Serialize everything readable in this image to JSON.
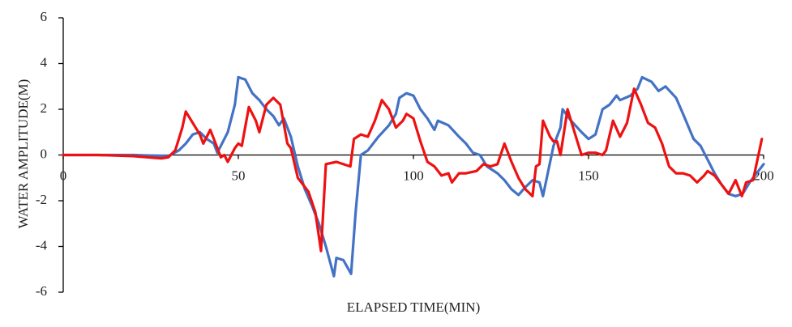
{
  "chart_data": {
    "type": "line",
    "x_label": "ELAPSED TIME(MIN)",
    "y_label": "WATER AMPLITUDE(M)",
    "xlim": [
      0,
      200
    ],
    "xticks": [
      0,
      50,
      100,
      150,
      200
    ],
    "ylim": [
      -6,
      6
    ],
    "yticks": [
      -6,
      -4,
      -2,
      0,
      2,
      4,
      6
    ],
    "series": [
      {
        "color": "#4472c4",
        "x": [
          0,
          10,
          20,
          30,
          33,
          35,
          37,
          39,
          41,
          43,
          44,
          47,
          49,
          50,
          52,
          54,
          56,
          58,
          60,
          61.6,
          63,
          65,
          67,
          69,
          71,
          73,
          75,
          77.3,
          78,
          80,
          82.2,
          83.5,
          85,
          87,
          90,
          93,
          95,
          96,
          98,
          100,
          102,
          104,
          106,
          107,
          110,
          113,
          115,
          117,
          119,
          121,
          124,
          126,
          128,
          130,
          132,
          134,
          136,
          137,
          140,
          142,
          142.6,
          145,
          148,
          150,
          152,
          154,
          156,
          158,
          159,
          162,
          164,
          165.3,
          168,
          170,
          172,
          175,
          177,
          180,
          182,
          184,
          186,
          188,
          190,
          192,
          194,
          196,
          198,
          200
        ],
        "values": [
          0,
          0,
          0,
          -0.05,
          0.2,
          0.5,
          0.9,
          1.0,
          0.7,
          0.5,
          0.1,
          1.0,
          2.2,
          3.4,
          3.3,
          2.7,
          2.4,
          2.0,
          1.7,
          1.3,
          1.6,
          0.8,
          -0.5,
          -1.5,
          -2.2,
          -3.0,
          -4.0,
          -5.3,
          -4.5,
          -4.6,
          -5.2,
          -2.5,
          0,
          0.2,
          0.8,
          1.3,
          1.8,
          2.5,
          2.7,
          2.6,
          2.0,
          1.6,
          1.1,
          1.5,
          1.3,
          0.8,
          0.5,
          0.1,
          0.0,
          -0.5,
          -0.8,
          -1.1,
          -1.5,
          -1.75,
          -1.4,
          -1.1,
          -1.2,
          -1.8,
          0.4,
          1.2,
          2.0,
          1.5,
          1.0,
          0.7,
          0.9,
          2.0,
          2.2,
          2.6,
          2.4,
          2.6,
          2.9,
          3.4,
          3.2,
          2.8,
          3.0,
          2.5,
          1.8,
          0.7,
          0.4,
          -0.2,
          -0.8,
          -1.3,
          -1.7,
          -1.8,
          -1.7,
          -1.2,
          -0.8,
          -0.4
        ]
      },
      {
        "color": "#ee1111",
        "x": [
          0,
          10,
          20,
          28,
          30,
          32,
          34,
          35,
          37,
          39,
          40,
          42,
          43,
          45,
          46,
          47,
          49,
          50,
          51,
          53,
          55,
          56,
          58,
          60,
          62,
          64,
          65,
          67,
          69,
          70,
          72,
          73.6,
          75,
          78,
          82,
          83,
          85,
          87,
          89,
          91,
          93,
          95,
          97,
          98,
          100,
          102,
          104,
          106,
          108,
          110,
          111,
          113,
          115,
          118,
          120,
          122,
          124,
          126,
          128,
          130,
          132,
          134,
          135,
          136,
          137,
          139,
          140,
          141,
          142,
          144,
          146,
          148,
          150,
          152,
          154,
          155,
          157,
          159,
          161,
          163,
          165,
          167,
          169,
          171,
          173,
          175,
          177,
          179,
          181,
          183,
          184,
          186,
          188,
          190,
          192,
          193.8,
          195,
          197,
          199.5
        ],
        "values": [
          0,
          0,
          -0.05,
          -0.15,
          -0.1,
          0.2,
          1.2,
          1.9,
          1.4,
          0.9,
          0.5,
          1.1,
          0.7,
          -0.1,
          0.0,
          -0.3,
          0.3,
          0.5,
          0.4,
          2.1,
          1.5,
          1.0,
          2.2,
          2.5,
          2.2,
          0.5,
          0.3,
          -1.0,
          -1.4,
          -1.6,
          -2.5,
          -4.2,
          -0.4,
          -0.3,
          -0.5,
          0.7,
          0.9,
          0.8,
          1.5,
          2.4,
          2.0,
          1.2,
          1.5,
          1.8,
          1.6,
          0.6,
          -0.3,
          -0.5,
          -0.9,
          -0.8,
          -1.2,
          -0.8,
          -0.8,
          -0.7,
          -0.4,
          -0.5,
          -0.4,
          0.5,
          -0.3,
          -1.0,
          -1.5,
          -1.8,
          -0.5,
          -0.4,
          1.5,
          0.8,
          0.6,
          0.6,
          0.0,
          2.0,
          1.0,
          0.0,
          0.1,
          0.1,
          0.0,
          0.2,
          1.5,
          0.8,
          1.4,
          2.9,
          2.2,
          1.4,
          1.2,
          0.5,
          -0.5,
          -0.8,
          -0.8,
          -0.9,
          -1.2,
          -0.9,
          -0.7,
          -0.9,
          -1.3,
          -1.7,
          -1.1,
          -1.8,
          -1.2,
          -1.1,
          0.7
        ]
      }
    ]
  }
}
